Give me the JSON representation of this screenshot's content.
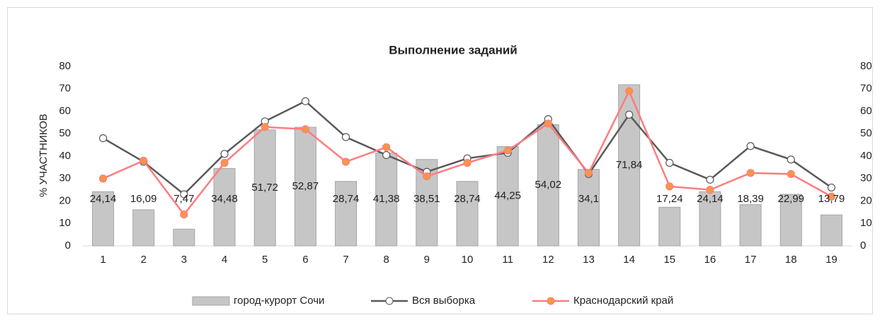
{
  "chart_data": {
    "type": "bar-line",
    "title": "Выполнение заданий",
    "y_label": "% УЧАСТНИКОВ",
    "categories": [
      "1",
      "2",
      "3",
      "4",
      "5",
      "6",
      "7",
      "8",
      "9",
      "10",
      "11",
      "12",
      "13",
      "14",
      "15",
      "16",
      "17",
      "18",
      "19"
    ],
    "series": [
      {
        "name": "город-курорт Сочи",
        "type": "bar",
        "color": "#c6c6c6",
        "values": [
          24.14,
          16.09,
          7.47,
          34.48,
          51.72,
          52.87,
          28.74,
          41.38,
          38.51,
          28.74,
          44.25,
          54.02,
          34.1,
          71.84,
          17.24,
          24.14,
          18.39,
          22.99,
          13.79
        ],
        "value_labels": [
          "24,14",
          "16,09",
          "7,47",
          "34,48",
          "51,72",
          "52,87",
          "28,74",
          "41,38",
          "38,51",
          "28,74",
          "44,25",
          "54,02",
          "34,1",
          "71,84",
          "17,24",
          "24,14",
          "18,39",
          "22,99",
          "13,79"
        ]
      },
      {
        "name": "Вся выборка",
        "type": "line",
        "color": "#595959",
        "marker_color": "#ffffff",
        "values": [
          48,
          37.5,
          23,
          41,
          55.5,
          64.5,
          48.5,
          40.5,
          33,
          39,
          41.5,
          56.5,
          32,
          58.5,
          37,
          29.5,
          44.5,
          38.5,
          26
        ]
      },
      {
        "name": "Краснодарский край",
        "type": "line",
        "color": "#ff7c80",
        "marker_color": "#f79646",
        "values": [
          30,
          38,
          14,
          37,
          53,
          52,
          37.5,
          44,
          31,
          37,
          42.5,
          54.5,
          32.5,
          69,
          26.5,
          25,
          32.5,
          32,
          22
        ]
      }
    ],
    "ylim": [
      0,
      80
    ],
    "yticks": [
      0,
      10,
      20,
      30,
      40,
      50,
      60,
      70,
      80
    ],
    "y2lim": [
      0,
      80
    ],
    "y2ticks": [
      0,
      10,
      20,
      30,
      40,
      50,
      60,
      70,
      80
    ],
    "legend": "bottom"
  }
}
